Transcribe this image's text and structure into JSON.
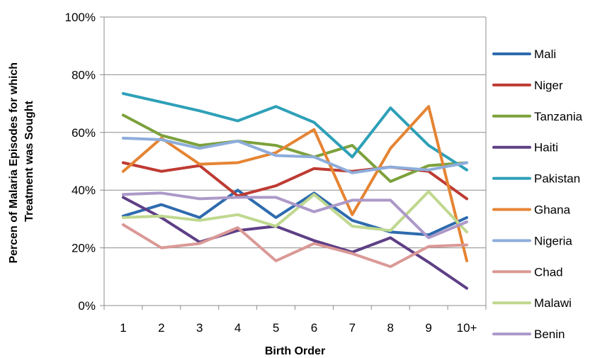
{
  "chart_data": {
    "type": "line",
    "title": "",
    "xlabel": "Birth Order",
    "ylabel": "Percen of Malaria Episodes for which Treatment was Sought",
    "ylabel_lines": [
      "Percen of Malaria Episodes for which",
      "Treatment was Sought"
    ],
    "ylim": [
      0,
      100
    ],
    "y_ticks": [
      "0%",
      "20%",
      "40%",
      "60%",
      "80%",
      "100%"
    ],
    "y_tick_values": [
      0,
      20,
      40,
      60,
      80,
      100
    ],
    "categories": [
      "1",
      "2",
      "3",
      "4",
      "5",
      "6",
      "7",
      "8",
      "9",
      "10+"
    ],
    "grid": "horizontal",
    "legend_position": "right",
    "series": [
      {
        "name": "Mali",
        "color": "#2E6BAE",
        "values": [
          31,
          35,
          30.5,
          40,
          30.5,
          39,
          29.5,
          25.5,
          24.5,
          30.5
        ]
      },
      {
        "name": "Niger",
        "color": "#BE3B33",
        "values": [
          49.5,
          46.5,
          48.5,
          38,
          41.5,
          47.5,
          46.5,
          48,
          46.5,
          37
        ]
      },
      {
        "name": "Tanzania",
        "color": "#7CA13C",
        "values": [
          66,
          59,
          55.5,
          57,
          55.5,
          51.5,
          55.5,
          43,
          48.5,
          49.5
        ]
      },
      {
        "name": "Haiti",
        "color": "#5E3F86",
        "values": [
          37.5,
          30.5,
          22,
          26,
          27.5,
          22.5,
          18.5,
          23.5,
          15,
          6
        ]
      },
      {
        "name": "Pakistan",
        "color": "#2EA0B8",
        "values": [
          73.5,
          70.5,
          67.5,
          64,
          69,
          63.5,
          51.5,
          68.5,
          55.5,
          47
        ]
      },
      {
        "name": "Ghana",
        "color": "#E58433",
        "values": [
          46.5,
          58,
          49,
          49.5,
          53,
          61,
          31.5,
          54.5,
          69,
          15.5
        ]
      },
      {
        "name": "Nigeria",
        "color": "#8DADDB",
        "values": [
          58,
          57.5,
          54.5,
          57,
          52,
          51.5,
          46,
          48,
          47,
          49.5
        ]
      },
      {
        "name": "Chad",
        "color": "#DA9996",
        "values": [
          28,
          20,
          21.5,
          27,
          15.5,
          21.5,
          18,
          13.5,
          20.5,
          21
        ]
      },
      {
        "name": "Malawi",
        "color": "#BFD88F",
        "values": [
          30.5,
          31,
          29.5,
          31.5,
          27.5,
          38.5,
          27.5,
          26,
          39.5,
          25.5
        ]
      },
      {
        "name": "Benin",
        "color": "#AC99C8",
        "values": [
          38.5,
          39,
          37,
          37.5,
          37.5,
          32.5,
          36.5,
          36.5,
          23.5,
          29
        ]
      }
    ]
  }
}
